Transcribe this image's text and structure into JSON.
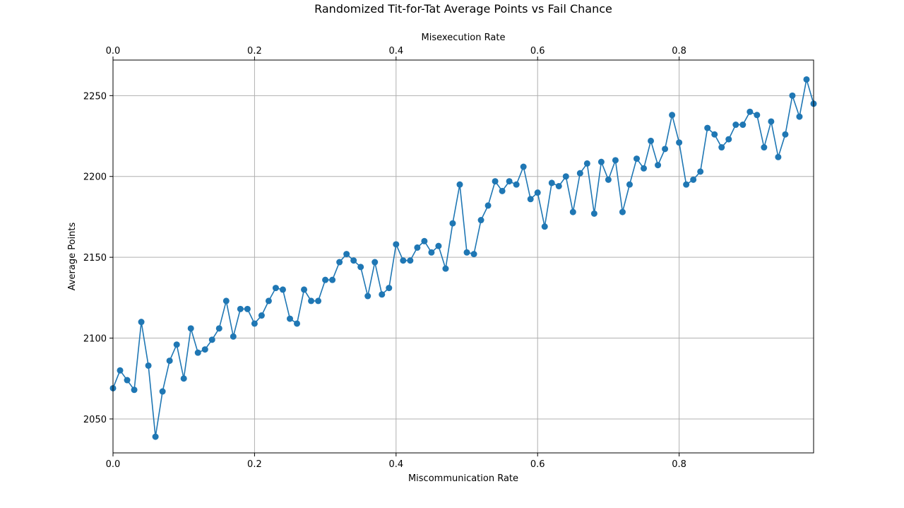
{
  "chart_data": {
    "type": "line",
    "title": "Randomized Tit-for-Tat Average Points vs Fail Chance",
    "xlabel": "Miscommunication Rate",
    "x2label": "Misexecution Rate",
    "ylabel": "Average Points",
    "xlim": [
      0,
      0.99
    ],
    "ylim": [
      2029,
      2272
    ],
    "xticks": [
      0.0,
      0.2,
      0.4,
      0.6,
      0.8
    ],
    "xtick_labels": [
      "0.0",
      "0.2",
      "0.4",
      "0.6",
      "0.8"
    ],
    "yticks": [
      2050,
      2100,
      2150,
      2200,
      2250
    ],
    "ytick_labels": [
      "2050",
      "2100",
      "2150",
      "2200",
      "2250"
    ],
    "grid": true,
    "marker": "circle",
    "color": "#1f77b4",
    "x": [
      0.0,
      0.01,
      0.02,
      0.03,
      0.04,
      0.05,
      0.06,
      0.07,
      0.08,
      0.09,
      0.1,
      0.11,
      0.12,
      0.13,
      0.14,
      0.15,
      0.16,
      0.17,
      0.18,
      0.19,
      0.2,
      0.21,
      0.22,
      0.23,
      0.24,
      0.25,
      0.26,
      0.27,
      0.28,
      0.29,
      0.3,
      0.31,
      0.32,
      0.33,
      0.34,
      0.35,
      0.36,
      0.37,
      0.38,
      0.39,
      0.4,
      0.41,
      0.42,
      0.43,
      0.44,
      0.45,
      0.46,
      0.47,
      0.48,
      0.49,
      0.5,
      0.51,
      0.52,
      0.53,
      0.54,
      0.55,
      0.56,
      0.57,
      0.58,
      0.59,
      0.6,
      0.61,
      0.62,
      0.63,
      0.64,
      0.65,
      0.66,
      0.67,
      0.68,
      0.69,
      0.7,
      0.71,
      0.72,
      0.73,
      0.74,
      0.75,
      0.76,
      0.77,
      0.78,
      0.79,
      0.8,
      0.81,
      0.82,
      0.83,
      0.84,
      0.85,
      0.86,
      0.87,
      0.88,
      0.89,
      0.9,
      0.91,
      0.92,
      0.93,
      0.94,
      0.95,
      0.96,
      0.97,
      0.98,
      0.99
    ],
    "y": [
      2069,
      2080,
      2074,
      2068,
      2110,
      2083,
      2039,
      2067,
      2086,
      2096,
      2075,
      2106,
      2091,
      2093,
      2099,
      2106,
      2123,
      2101,
      2118,
      2118,
      2109,
      2114,
      2123,
      2131,
      2130,
      2112,
      2109,
      2130,
      2123,
      2123,
      2136,
      2136,
      2147,
      2152,
      2148,
      2144,
      2126,
      2147,
      2127,
      2131,
      2158,
      2148,
      2148,
      2156,
      2160,
      2153,
      2157,
      2143,
      2171,
      2195,
      2153,
      2152,
      2173,
      2182,
      2197,
      2191,
      2197,
      2195,
      2206,
      2186,
      2190,
      2169,
      2196,
      2194,
      2200,
      2178,
      2202,
      2208,
      2177,
      2209,
      2198,
      2210,
      2178,
      2195,
      2211,
      2205,
      2222,
      2207,
      2217,
      2238,
      2221,
      2195,
      2198,
      2203,
      2230,
      2226,
      2218,
      2223,
      2232,
      2232,
      2240,
      2238,
      2218,
      2234,
      2212,
      2226,
      2250,
      2237,
      2260,
      2245
    ]
  }
}
